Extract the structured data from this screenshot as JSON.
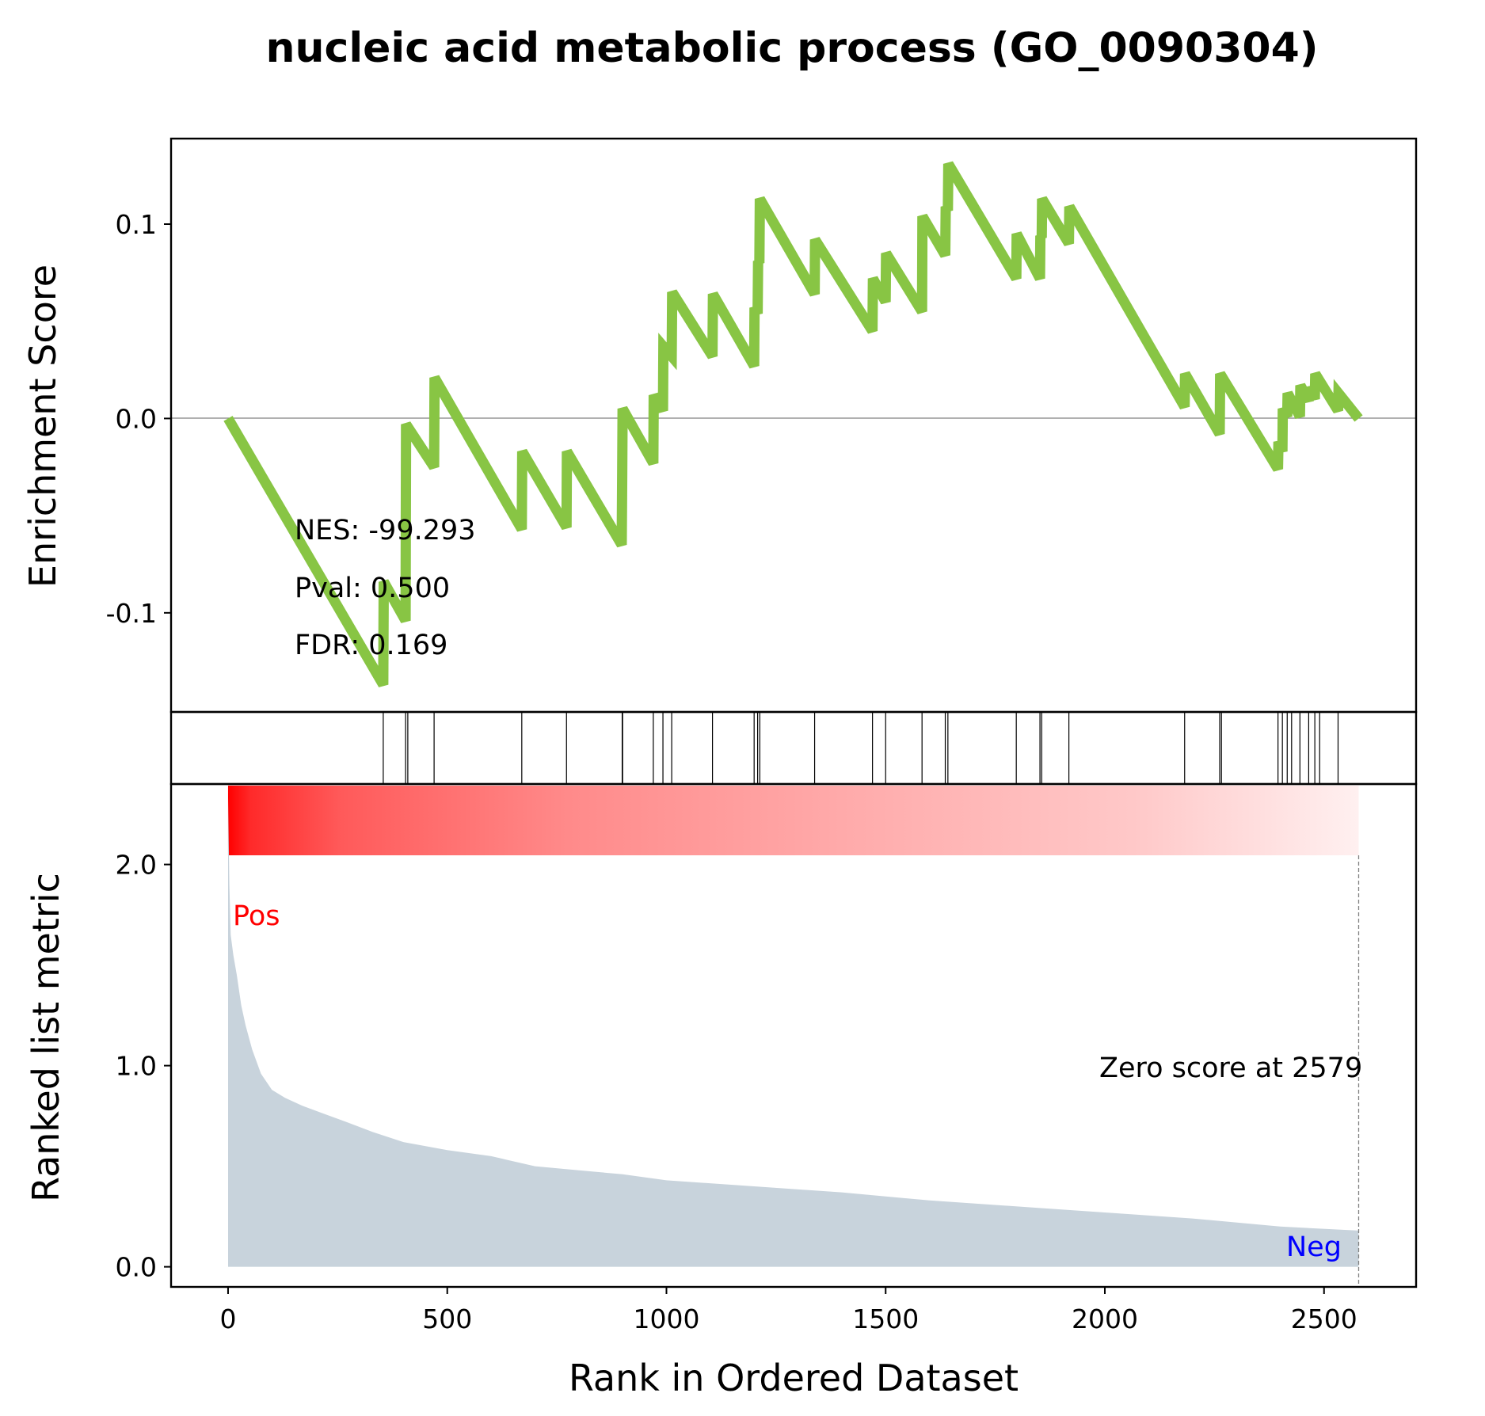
{
  "chart_data": {
    "type": "line",
    "title": "nucleic acid metabolic process (GO_0090304)",
    "xlabel": "Rank in Ordered Dataset",
    "ylabel_top": "Enrichment Score",
    "ylabel_bottom": "Ranked list metric",
    "xlim": [
      -130,
      2710
    ],
    "x_ticks": [
      0,
      500,
      1000,
      1500,
      2000,
      2500
    ],
    "es_ylim": [
      -0.151,
      0.144
    ],
    "es_ticks": [
      {
        "value": 0.1,
        "label": "0.1"
      },
      {
        "value": 0.0,
        "label": "0.0"
      },
      {
        "value": -0.1,
        "label": "-0.1"
      }
    ],
    "metric_ylim": [
      -0.1,
      2.4
    ],
    "metric_ticks": [
      {
        "value": 2.0,
        "label": "2.0"
      },
      {
        "value": 1.0,
        "label": "1.0"
      },
      {
        "value": 0.0,
        "label": "0.0"
      }
    ],
    "series": [
      {
        "color": "#88c544",
        "points": [
          [
            0,
            0.0
          ],
          [
            354,
            -0.137
          ],
          [
            355,
            -0.084
          ],
          [
            405,
            -0.104
          ],
          [
            406,
            -0.003
          ],
          [
            470,
            -0.025
          ],
          [
            471,
            0.021
          ],
          [
            670,
            -0.057
          ],
          [
            671,
            -0.017
          ],
          [
            772,
            -0.056
          ],
          [
            773,
            -0.017
          ],
          [
            898,
            -0.065
          ],
          [
            899,
            -0.029
          ],
          [
            900,
            0.005
          ],
          [
            970,
            -0.023
          ],
          [
            971,
            0.012
          ],
          [
            992,
            0.004
          ],
          [
            993,
            0.037
          ],
          [
            1012,
            0.032
          ],
          [
            1013,
            0.065
          ],
          [
            1105,
            0.032
          ],
          [
            1106,
            0.064
          ],
          [
            1200,
            0.027
          ],
          [
            1201,
            0.057
          ],
          [
            1208,
            0.054
          ],
          [
            1209,
            0.081
          ],
          [
            1212,
            0.08
          ],
          [
            1213,
            0.113
          ],
          [
            1338,
            0.064
          ],
          [
            1339,
            0.092
          ],
          [
            1470,
            0.045
          ],
          [
            1471,
            0.072
          ],
          [
            1500,
            0.06
          ],
          [
            1501,
            0.085
          ],
          [
            1583,
            0.055
          ],
          [
            1584,
            0.104
          ],
          [
            1636,
            0.084
          ],
          [
            1637,
            0.109
          ],
          [
            1642,
            0.107
          ],
          [
            1643,
            0.131
          ],
          [
            1798,
            0.072
          ],
          [
            1799,
            0.095
          ],
          [
            1852,
            0.072
          ],
          [
            1853,
            0.094
          ],
          [
            1856,
            0.093
          ],
          [
            1857,
            0.113
          ],
          [
            1918,
            0.09
          ],
          [
            1919,
            0.109
          ],
          [
            2182,
            0.006
          ],
          [
            2183,
            0.023
          ],
          [
            2262,
            -0.008
          ],
          [
            2263,
            0.023
          ],
          [
            2395,
            -0.026
          ],
          [
            2396,
            -0.012
          ],
          [
            2405,
            -0.017
          ],
          [
            2406,
            0.005
          ],
          [
            2416,
            0.001
          ],
          [
            2417,
            0.013
          ],
          [
            2445,
            0.001
          ],
          [
            2446,
            0.017
          ],
          [
            2465,
            0.009
          ],
          [
            2466,
            0.016
          ],
          [
            2479,
            0.01
          ],
          [
            2480,
            0.023
          ],
          [
            2532,
            0.004
          ],
          [
            2533,
            0.013
          ],
          [
            2579,
            0.0
          ]
        ]
      }
    ],
    "hits": [
      354,
      405,
      410,
      470,
      670,
      772,
      899,
      900,
      970,
      992,
      1012,
      1105,
      1200,
      1208,
      1213,
      1338,
      1470,
      1500,
      1583,
      1636,
      1642,
      1798,
      1852,
      1856,
      1918,
      2182,
      2262,
      2266,
      2395,
      2405,
      2416,
      2426,
      2445,
      2465,
      2479,
      2490,
      2532
    ],
    "ranked_metric": {
      "color": "#c8d3dc",
      "points": [
        [
          0,
          2.33
        ],
        [
          3,
          1.9
        ],
        [
          6,
          1.65
        ],
        [
          12,
          1.55
        ],
        [
          20,
          1.45
        ],
        [
          30,
          1.3
        ],
        [
          40,
          1.2
        ],
        [
          55,
          1.08
        ],
        [
          75,
          0.96
        ],
        [
          100,
          0.88
        ],
        [
          130,
          0.84
        ],
        [
          170,
          0.8
        ],
        [
          220,
          0.76
        ],
        [
          270,
          0.72
        ],
        [
          330,
          0.67
        ],
        [
          400,
          0.62
        ],
        [
          500,
          0.58
        ],
        [
          600,
          0.55
        ],
        [
          700,
          0.5
        ],
        [
          800,
          0.48
        ],
        [
          900,
          0.46
        ],
        [
          1000,
          0.43
        ],
        [
          1200,
          0.4
        ],
        [
          1400,
          0.37
        ],
        [
          1600,
          0.33
        ],
        [
          1800,
          0.3
        ],
        [
          2000,
          0.27
        ],
        [
          2200,
          0.24
        ],
        [
          2400,
          0.2
        ],
        [
          2579,
          0.18
        ]
      ]
    },
    "annotations": {
      "nes": "NES: -99.293",
      "pval": "Pval: 0.500",
      "fdr": "FDR: 0.169",
      "zero_score": "Zero score at 2579",
      "pos": "Pos",
      "neg": "Neg"
    },
    "zero_score_x": 2579,
    "colors": {
      "pos": "#ff0000",
      "neg": "#0000ff",
      "heatmap_start": "#ff0000",
      "heatmap_end": "#fff0f0",
      "axis": "#000000",
      "zero_line": "#808080"
    }
  }
}
